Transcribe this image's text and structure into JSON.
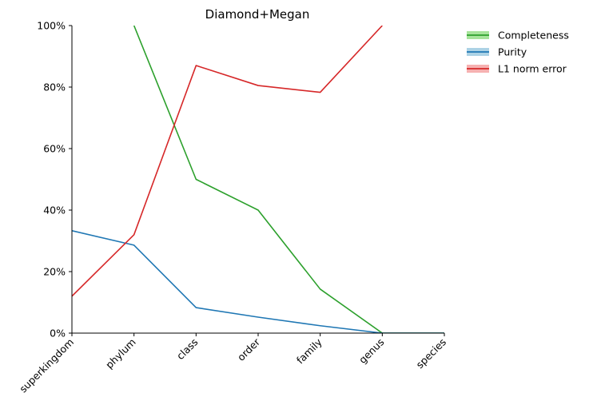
{
  "chart_data": {
    "type": "line",
    "title": "Diamond+Megan",
    "xlabel": "",
    "ylabel": "",
    "categories": [
      "superkingdom",
      "phylum",
      "class",
      "order",
      "family",
      "genus",
      "species"
    ],
    "ylim": [
      0,
      100
    ],
    "yticks": [
      "0%",
      "20%",
      "40%",
      "60%",
      "80%",
      "100%"
    ],
    "grid": false,
    "legend_position": "outside-top-right",
    "series": [
      {
        "name": "Completeness",
        "color": "#2ca02c",
        "band_color": "#98df8a",
        "values": [
          null,
          100,
          50,
          40,
          14.3,
          0,
          0
        ]
      },
      {
        "name": "Purity",
        "color": "#1f77b4",
        "band_color": "#9ecae1",
        "values": [
          33.3,
          28.6,
          8.3,
          5.2,
          2.4,
          0,
          0
        ]
      },
      {
        "name": "L1 norm error",
        "color": "#d62728",
        "band_color": "#f4a3a3",
        "values": [
          12,
          32,
          87,
          80.5,
          78.3,
          100,
          null
        ]
      }
    ]
  }
}
